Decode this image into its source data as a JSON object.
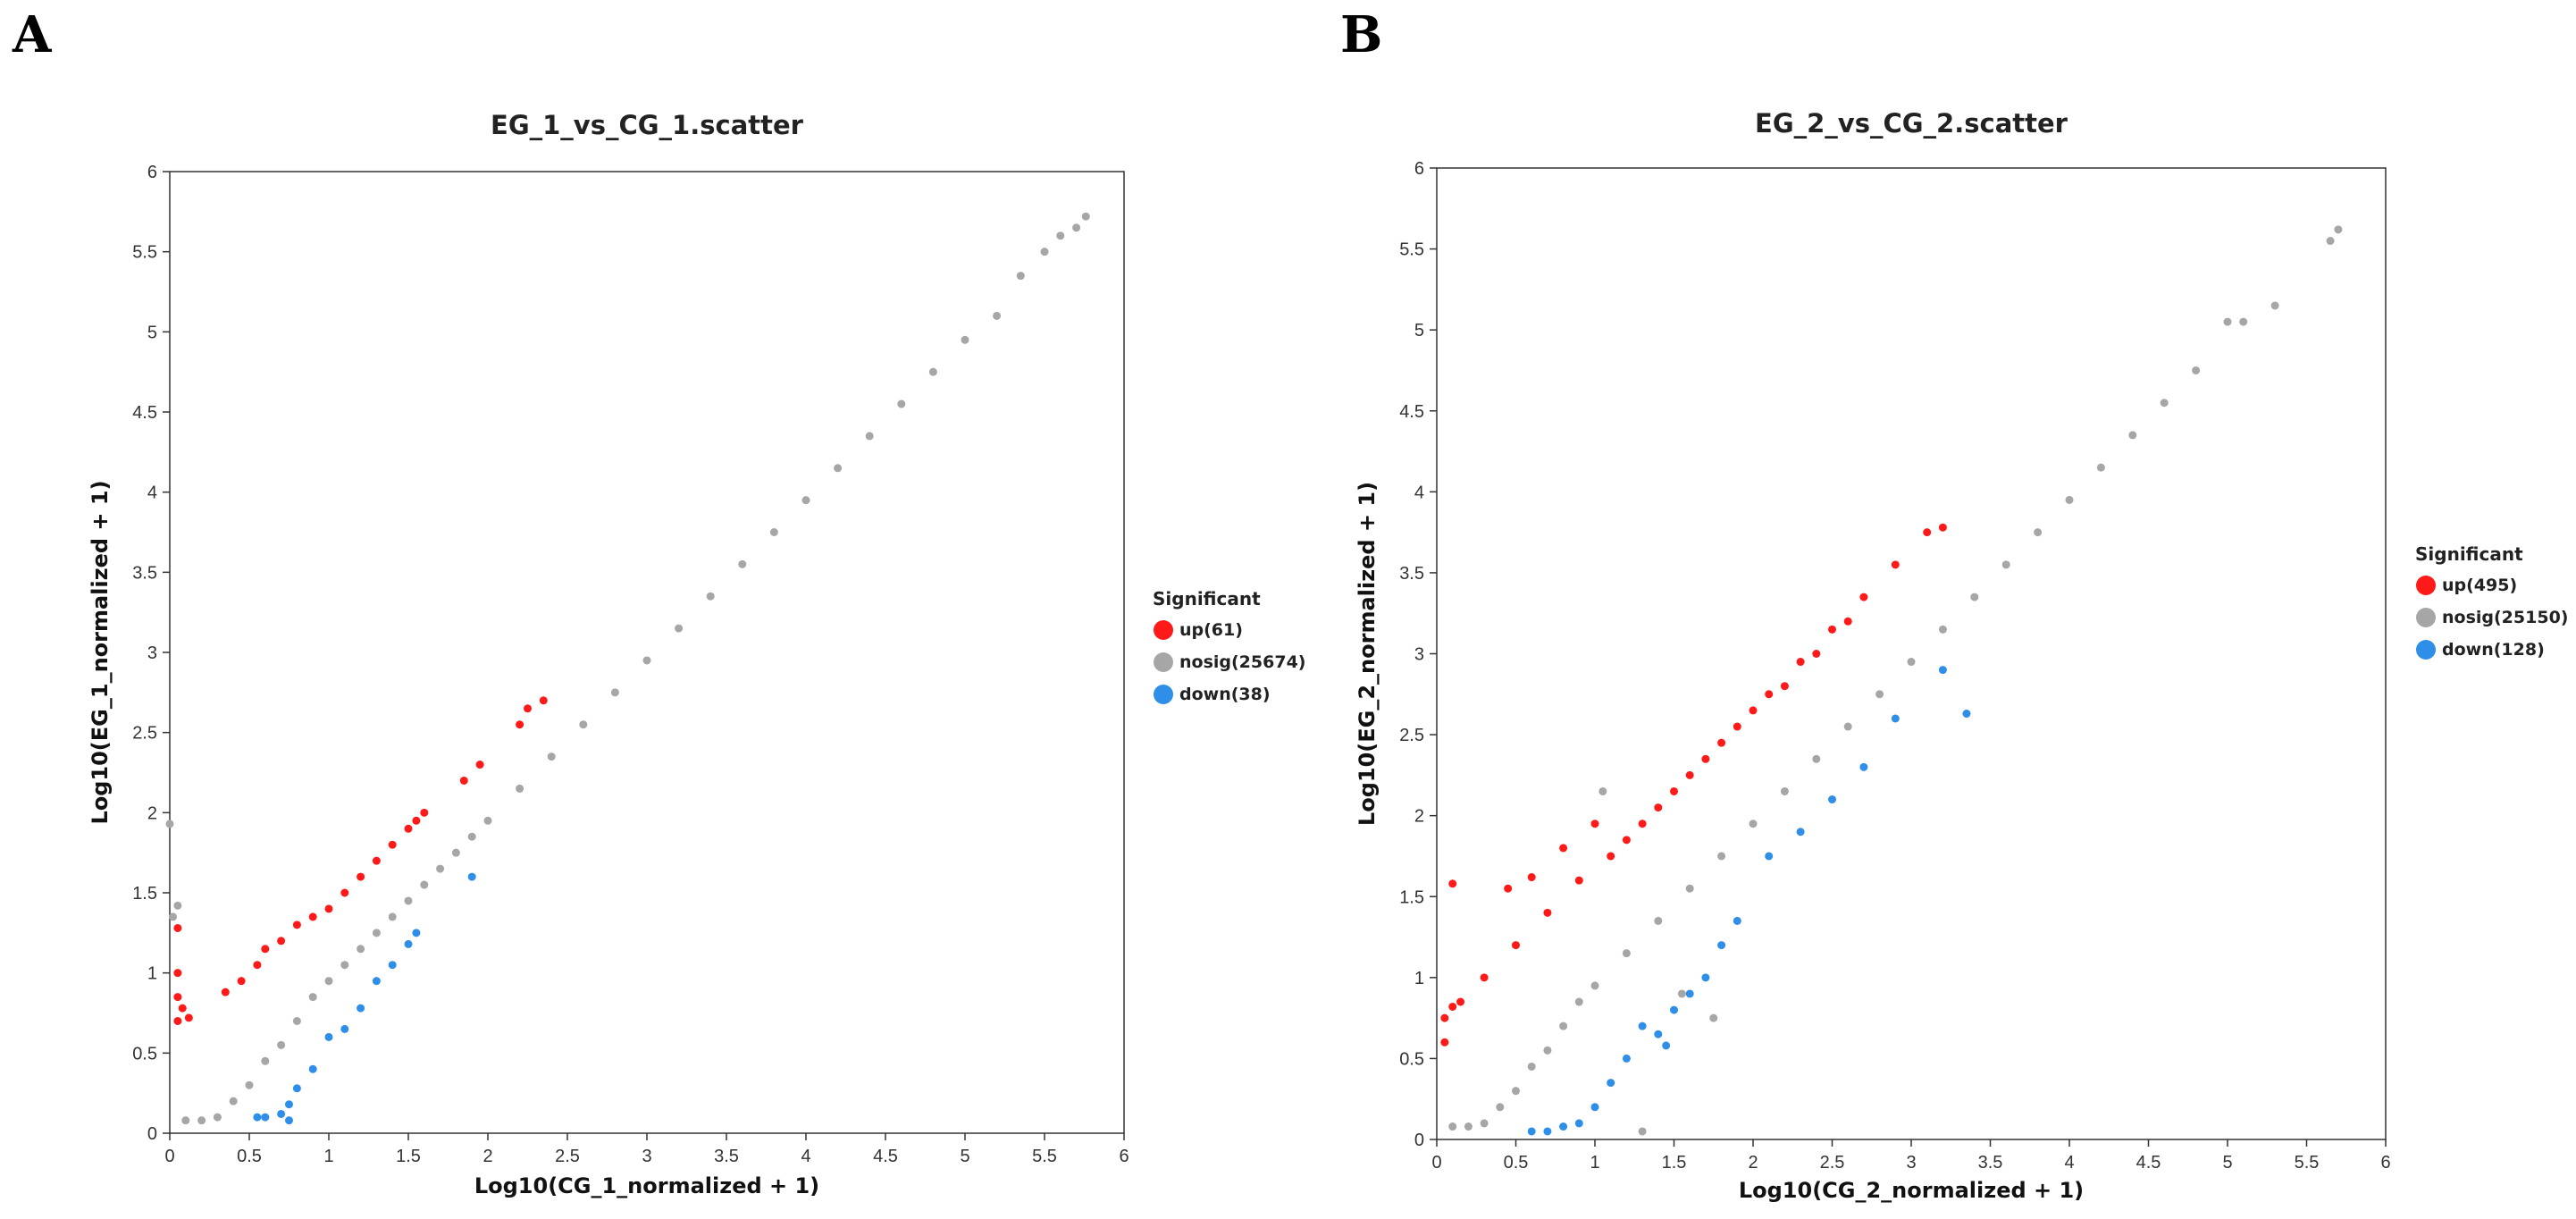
{
  "panels": [
    "A",
    "B"
  ],
  "colors": {
    "up": "#ff1a1a",
    "nosig": "#a6a6a6",
    "down": "#2f8fe8",
    "frame": "#333333"
  },
  "chart_data": [
    {
      "type": "scatter",
      "title": "EG_1_vs_CG_1.scatter",
      "xlabel": "Log10(CG_1_normalized + 1)",
      "ylabel": "Log10(EG_1_normalized + 1)",
      "xlim": [
        0,
        6
      ],
      "ylim": [
        0,
        6
      ],
      "xticks": [
        "0",
        "0.5",
        "1",
        "1.5",
        "2",
        "2.5",
        "3",
        "3.5",
        "4",
        "4.5",
        "5",
        "5.5",
        "6"
      ],
      "yticks": [
        "0",
        "0.5",
        "1",
        "1.5",
        "2",
        "2.5",
        "3",
        "3.5",
        "4",
        "4.5",
        "5",
        "5.5",
        "6"
      ],
      "legend": {
        "title": "Significant",
        "items": [
          {
            "key": "up",
            "label": "up(61)"
          },
          {
            "key": "nosig",
            "label": "nosig(25674)"
          },
          {
            "key": "down",
            "label": "down(38)"
          }
        ]
      },
      "series": [
        {
          "name": "nosig",
          "points": [
            [
              0.1,
              0.08
            ],
            [
              0.2,
              0.08
            ],
            [
              0.3,
              0.1
            ],
            [
              0.4,
              0.2
            ],
            [
              0.5,
              0.3
            ],
            [
              0.6,
              0.45
            ],
            [
              0.7,
              0.55
            ],
            [
              0.8,
              0.7
            ],
            [
              0.9,
              0.85
            ],
            [
              1.0,
              0.95
            ],
            [
              1.1,
              1.05
            ],
            [
              1.2,
              1.15
            ],
            [
              1.3,
              1.25
            ],
            [
              1.4,
              1.35
            ],
            [
              1.5,
              1.45
            ],
            [
              1.6,
              1.55
            ],
            [
              1.7,
              1.65
            ],
            [
              1.8,
              1.75
            ],
            [
              1.9,
              1.85
            ],
            [
              2.0,
              1.95
            ],
            [
              2.2,
              2.15
            ],
            [
              2.4,
              2.35
            ],
            [
              2.6,
              2.55
            ],
            [
              2.8,
              2.75
            ],
            [
              3.0,
              2.95
            ],
            [
              3.2,
              3.15
            ],
            [
              3.4,
              3.35
            ],
            [
              3.6,
              3.55
            ],
            [
              3.8,
              3.75
            ],
            [
              4.0,
              3.95
            ],
            [
              4.2,
              4.15
            ],
            [
              4.4,
              4.35
            ],
            [
              4.6,
              4.55
            ],
            [
              4.8,
              4.75
            ],
            [
              5.0,
              4.95
            ],
            [
              5.2,
              5.1
            ],
            [
              5.35,
              5.35
            ],
            [
              5.5,
              5.5
            ],
            [
              5.6,
              5.6
            ],
            [
              5.7,
              5.65
            ],
            [
              5.76,
              5.72
            ],
            [
              0.0,
              1.93
            ],
            [
              0.05,
              1.42
            ],
            [
              0.02,
              1.35
            ]
          ]
        },
        {
          "name": "up",
          "points": [
            [
              0.05,
              1.28
            ],
            [
              0.05,
              1.0
            ],
            [
              0.05,
              0.85
            ],
            [
              0.08,
              0.78
            ],
            [
              0.05,
              0.7
            ],
            [
              0.12,
              0.72
            ],
            [
              0.35,
              0.88
            ],
            [
              0.45,
              0.95
            ],
            [
              0.55,
              1.05
            ],
            [
              0.6,
              1.15
            ],
            [
              0.7,
              1.2
            ],
            [
              0.8,
              1.3
            ],
            [
              0.9,
              1.35
            ],
            [
              1.0,
              1.4
            ],
            [
              1.1,
              1.5
            ],
            [
              1.2,
              1.6
            ],
            [
              1.3,
              1.7
            ],
            [
              1.4,
              1.8
            ],
            [
              1.5,
              1.9
            ],
            [
              1.55,
              1.95
            ],
            [
              1.6,
              2.0
            ],
            [
              1.85,
              2.2
            ],
            [
              1.95,
              2.3
            ],
            [
              2.2,
              2.55
            ],
            [
              2.25,
              2.65
            ],
            [
              2.35,
              2.7
            ]
          ]
        },
        {
          "name": "down",
          "points": [
            [
              0.55,
              0.1
            ],
            [
              0.6,
              0.1
            ],
            [
              0.7,
              0.12
            ],
            [
              0.75,
              0.18
            ],
            [
              0.8,
              0.28
            ],
            [
              0.9,
              0.4
            ],
            [
              1.0,
              0.6
            ],
            [
              1.1,
              0.65
            ],
            [
              1.2,
              0.78
            ],
            [
              1.3,
              0.95
            ],
            [
              1.4,
              1.05
            ],
            [
              1.5,
              1.18
            ],
            [
              1.55,
              1.25
            ],
            [
              1.9,
              1.6
            ],
            [
              0.75,
              0.08
            ]
          ]
        }
      ]
    },
    {
      "type": "scatter",
      "title": "EG_2_vs_CG_2.scatter",
      "xlabel": "Log10(CG_2_normalized + 1)",
      "ylabel": "Log10(EG_2_normalized + 1)",
      "xlim": [
        0,
        6
      ],
      "ylim": [
        0,
        6
      ],
      "xticks": [
        "0",
        "0.5",
        "1",
        "1.5",
        "2",
        "2.5",
        "3",
        "3.5",
        "4",
        "4.5",
        "5",
        "5.5",
        "6"
      ],
      "yticks": [
        "0",
        "0.5",
        "1",
        "1.5",
        "2",
        "2.5",
        "3",
        "3.5",
        "4",
        "4.5",
        "5",
        "5.5",
        "6"
      ],
      "legend": {
        "title": "Significant",
        "items": [
          {
            "key": "up",
            "label": "up(495)"
          },
          {
            "key": "nosig",
            "label": "nosig(25150)"
          },
          {
            "key": "down",
            "label": "down(128)"
          }
        ]
      },
      "series": [
        {
          "name": "nosig",
          "points": [
            [
              0.1,
              0.08
            ],
            [
              0.2,
              0.08
            ],
            [
              0.3,
              0.1
            ],
            [
              0.4,
              0.2
            ],
            [
              0.5,
              0.3
            ],
            [
              0.6,
              0.45
            ],
            [
              0.7,
              0.55
            ],
            [
              0.8,
              0.7
            ],
            [
              0.9,
              0.85
            ],
            [
              1.0,
              0.95
            ],
            [
              1.2,
              1.15
            ],
            [
              1.4,
              1.35
            ],
            [
              1.6,
              1.55
            ],
            [
              1.8,
              1.75
            ],
            [
              2.0,
              1.95
            ],
            [
              2.2,
              2.15
            ],
            [
              2.4,
              2.35
            ],
            [
              2.6,
              2.55
            ],
            [
              2.8,
              2.75
            ],
            [
              3.0,
              2.95
            ],
            [
              3.2,
              3.15
            ],
            [
              3.4,
              3.35
            ],
            [
              3.6,
              3.55
            ],
            [
              3.8,
              3.75
            ],
            [
              4.0,
              3.95
            ],
            [
              4.2,
              4.15
            ],
            [
              4.4,
              4.35
            ],
            [
              4.6,
              4.55
            ],
            [
              4.8,
              4.75
            ],
            [
              5.0,
              5.05
            ],
            [
              5.1,
              5.05
            ],
            [
              5.3,
              5.15
            ],
            [
              5.65,
              5.55
            ],
            [
              5.7,
              5.62
            ],
            [
              1.05,
              2.15
            ],
            [
              1.3,
              0.05
            ],
            [
              1.55,
              0.9
            ],
            [
              1.75,
              0.75
            ]
          ]
        },
        {
          "name": "up",
          "points": [
            [
              0.05,
              0.6
            ],
            [
              0.05,
              0.75
            ],
            [
              0.1,
              0.82
            ],
            [
              0.15,
              0.85
            ],
            [
              0.1,
              1.58
            ],
            [
              0.45,
              1.55
            ],
            [
              0.6,
              1.62
            ],
            [
              0.8,
              1.8
            ],
            [
              1.0,
              1.95
            ],
            [
              0.3,
              1.0
            ],
            [
              0.5,
              1.2
            ],
            [
              0.7,
              1.4
            ],
            [
              0.9,
              1.6
            ],
            [
              1.1,
              1.75
            ],
            [
              1.3,
              1.95
            ],
            [
              1.5,
              2.15
            ],
            [
              1.7,
              2.35
            ],
            [
              1.9,
              2.55
            ],
            [
              2.1,
              2.75
            ],
            [
              2.3,
              2.95
            ],
            [
              2.5,
              3.15
            ],
            [
              2.7,
              3.35
            ],
            [
              2.9,
              3.55
            ],
            [
              3.1,
              3.75
            ],
            [
              3.2,
              3.78
            ],
            [
              1.2,
              1.85
            ],
            [
              1.4,
              2.05
            ],
            [
              1.6,
              2.25
            ],
            [
              1.8,
              2.45
            ],
            [
              2.0,
              2.65
            ],
            [
              2.2,
              2.8
            ],
            [
              2.4,
              3.0
            ],
            [
              2.6,
              3.2
            ]
          ]
        },
        {
          "name": "down",
          "points": [
            [
              0.6,
              0.05
            ],
            [
              0.7,
              0.05
            ],
            [
              0.8,
              0.08
            ],
            [
              0.9,
              0.1
            ],
            [
              1.0,
              0.2
            ],
            [
              1.1,
              0.35
            ],
            [
              1.2,
              0.5
            ],
            [
              1.3,
              0.7
            ],
            [
              1.4,
              0.65
            ],
            [
              1.5,
              0.8
            ],
            [
              1.6,
              0.9
            ],
            [
              1.7,
              1.0
            ],
            [
              1.8,
              1.2
            ],
            [
              1.9,
              1.35
            ],
            [
              2.1,
              1.75
            ],
            [
              2.3,
              1.9
            ],
            [
              2.5,
              2.1
            ],
            [
              2.7,
              2.3
            ],
            [
              2.9,
              2.6
            ],
            [
              3.2,
              2.9
            ],
            [
              3.35,
              2.63
            ],
            [
              1.45,
              0.58
            ]
          ]
        }
      ]
    }
  ]
}
